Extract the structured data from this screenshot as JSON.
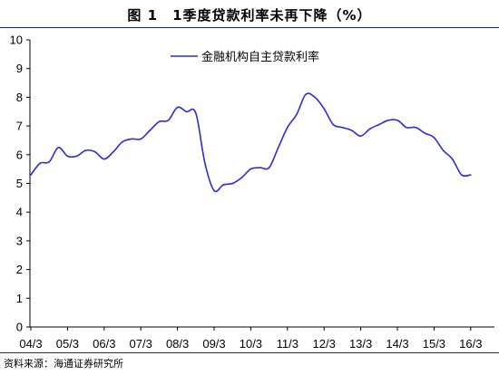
{
  "title": "图 1　1季度贷款利率未再下降（%）",
  "source": "资料来源：海通证券研究所",
  "chart_data": {
    "type": "line",
    "title": "1季度贷款利率未再下降（%）",
    "xlabel": "",
    "ylabel": "",
    "ylim": [
      0,
      10
    ],
    "yticks": [
      0,
      1,
      2,
      3,
      4,
      5,
      6,
      7,
      8,
      9,
      10
    ],
    "xtick_labels": [
      "04/3",
      "05/3",
      "06/3",
      "07/3",
      "08/3",
      "09/3",
      "10/3",
      "11/3",
      "12/3",
      "13/3",
      "14/3",
      "15/3",
      "16/3"
    ],
    "grid": false,
    "legend_position": "top-center",
    "color": "#2b2bdf",
    "series": [
      {
        "name": "金融机构自主贷款利率",
        "x": [
          "04/3",
          "04/6",
          "04/9",
          "04/12",
          "05/3",
          "05/6",
          "05/9",
          "05/12",
          "06/3",
          "06/6",
          "06/9",
          "06/12",
          "07/3",
          "07/6",
          "07/9",
          "07/12",
          "08/3",
          "08/6",
          "08/9",
          "08/12",
          "09/3",
          "09/6",
          "09/9",
          "09/12",
          "10/3",
          "10/6",
          "10/9",
          "10/12",
          "11/3",
          "11/6",
          "11/9",
          "11/12",
          "12/3",
          "12/6",
          "12/9",
          "12/12",
          "13/3",
          "13/6",
          "13/9",
          "13/12",
          "14/3",
          "14/6",
          "14/9",
          "14/12",
          "15/3",
          "15/6",
          "15/9",
          "15/12",
          "16/3"
        ],
        "values": [
          5.3,
          5.7,
          5.75,
          6.25,
          5.95,
          5.95,
          6.15,
          6.1,
          5.85,
          6.1,
          6.45,
          6.55,
          6.55,
          6.85,
          7.15,
          7.2,
          7.65,
          7.5,
          7.45,
          5.7,
          4.75,
          4.95,
          5.0,
          5.2,
          5.5,
          5.55,
          5.55,
          6.25,
          6.95,
          7.4,
          8.1,
          8.0,
          7.6,
          7.05,
          6.95,
          6.85,
          6.65,
          6.9,
          7.05,
          7.2,
          7.2,
          6.95,
          6.95,
          6.75,
          6.6,
          6.15,
          5.85,
          5.3,
          5.3
        ]
      }
    ]
  }
}
